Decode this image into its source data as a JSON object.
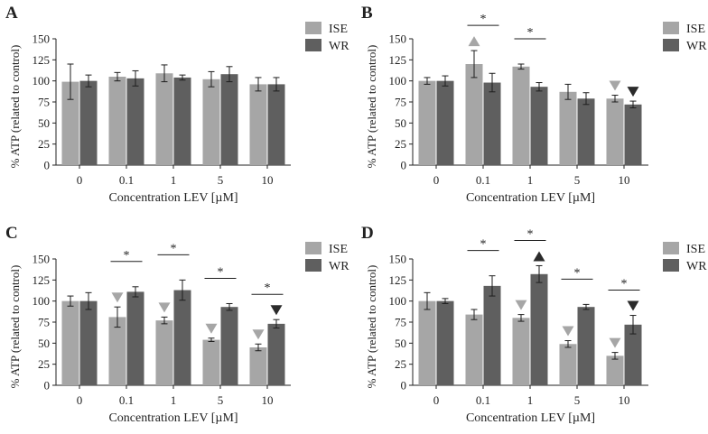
{
  "colors": {
    "ise": "#a6a6a6",
    "wr": "#5f5f5f",
    "axis": "#222222",
    "sig_light": "#a6a6a6",
    "sig_dark": "#2b2b2b"
  },
  "chart_data": [
    {
      "panel": "A",
      "type": "bar",
      "categories": [
        "0",
        "0.1",
        "1",
        "5",
        "10"
      ],
      "series": [
        {
          "name": "ISE",
          "values": [
            99,
            105,
            109,
            102,
            96
          ],
          "errors": [
            21,
            5,
            10,
            9,
            8
          ]
        },
        {
          "name": "WR",
          "values": [
            100,
            103,
            104,
            108,
            96
          ],
          "errors": [
            7,
            9,
            3,
            9,
            8
          ]
        }
      ],
      "xlabel": "Concentration LEV [µM]",
      "ylabel": "% ATP (related to control)",
      "ylim": [
        0,
        150
      ],
      "yticks": [
        0,
        25,
        50,
        75,
        100,
        125,
        150
      ],
      "significance": [],
      "markers": []
    },
    {
      "panel": "B",
      "type": "bar",
      "categories": [
        "0",
        "0.1",
        "1",
        "5",
        "10"
      ],
      "series": [
        {
          "name": "ISE",
          "values": [
            100,
            120,
            117,
            87,
            79
          ],
          "errors": [
            4,
            16,
            3,
            9,
            4
          ]
        },
        {
          "name": "WR",
          "values": [
            100,
            98,
            93,
            79,
            72
          ],
          "errors": [
            6,
            11,
            5,
            7,
            4
          ]
        }
      ],
      "xlabel": "Concentration LEV [µM]",
      "ylabel": "% ATP (related to control)",
      "ylim": [
        0,
        150
      ],
      "yticks": [
        0,
        25,
        50,
        75,
        100,
        125,
        150
      ],
      "significance": [
        {
          "category": 1,
          "label": "*"
        },
        {
          "category": 2,
          "label": "*"
        }
      ],
      "markers": [
        {
          "category": 1,
          "series": 0,
          "direction": "up"
        },
        {
          "category": 4,
          "series": 0,
          "direction": "down"
        },
        {
          "category": 4,
          "series": 1,
          "direction": "down"
        }
      ]
    },
    {
      "panel": "C",
      "type": "bar",
      "categories": [
        "0",
        "0.1",
        "1",
        "5",
        "10"
      ],
      "series": [
        {
          "name": "ISE",
          "values": [
            100,
            81,
            77,
            54,
            45
          ],
          "errors": [
            6,
            12,
            4,
            2,
            4
          ]
        },
        {
          "name": "WR",
          "values": [
            100,
            111,
            113,
            93,
            73
          ],
          "errors": [
            10,
            6,
            12,
            4,
            5
          ]
        }
      ],
      "xlabel": "Concentration LEV [µM]",
      "ylabel": "% ATP (related to control)",
      "ylim": [
        0,
        150
      ],
      "yticks": [
        0,
        25,
        50,
        75,
        100,
        125,
        150
      ],
      "significance": [
        {
          "category": 1,
          "label": "*"
        },
        {
          "category": 2,
          "label": "*"
        },
        {
          "category": 3,
          "label": "*"
        },
        {
          "category": 4,
          "label": "*"
        }
      ],
      "markers": [
        {
          "category": 1,
          "series": 0,
          "direction": "down"
        },
        {
          "category": 2,
          "series": 0,
          "direction": "down"
        },
        {
          "category": 3,
          "series": 0,
          "direction": "down"
        },
        {
          "category": 4,
          "series": 0,
          "direction": "down"
        },
        {
          "category": 4,
          "series": 1,
          "direction": "down"
        }
      ]
    },
    {
      "panel": "D",
      "type": "bar",
      "categories": [
        "0",
        "0.1",
        "1",
        "5",
        "10"
      ],
      "series": [
        {
          "name": "ISE",
          "values": [
            100,
            84,
            80,
            49,
            35
          ],
          "errors": [
            10,
            6,
            4,
            4,
            4
          ]
        },
        {
          "name": "WR",
          "values": [
            100,
            118,
            132,
            93,
            72
          ],
          "errors": [
            3,
            12,
            10,
            3,
            11
          ]
        }
      ],
      "xlabel": "Concentration LEV [µM]",
      "ylabel": "% ATP (related to control)",
      "ylim": [
        0,
        150
      ],
      "yticks": [
        0,
        25,
        50,
        75,
        100,
        125,
        150
      ],
      "significance": [
        {
          "category": 1,
          "label": "*"
        },
        {
          "category": 2,
          "label": "*"
        },
        {
          "category": 3,
          "label": "*"
        },
        {
          "category": 4,
          "label": "*"
        }
      ],
      "markers": [
        {
          "category": 2,
          "series": 0,
          "direction": "down"
        },
        {
          "category": 2,
          "series": 1,
          "direction": "up"
        },
        {
          "category": 3,
          "series": 0,
          "direction": "down"
        },
        {
          "category": 4,
          "series": 0,
          "direction": "down"
        },
        {
          "category": 4,
          "series": 1,
          "direction": "down"
        }
      ]
    }
  ]
}
